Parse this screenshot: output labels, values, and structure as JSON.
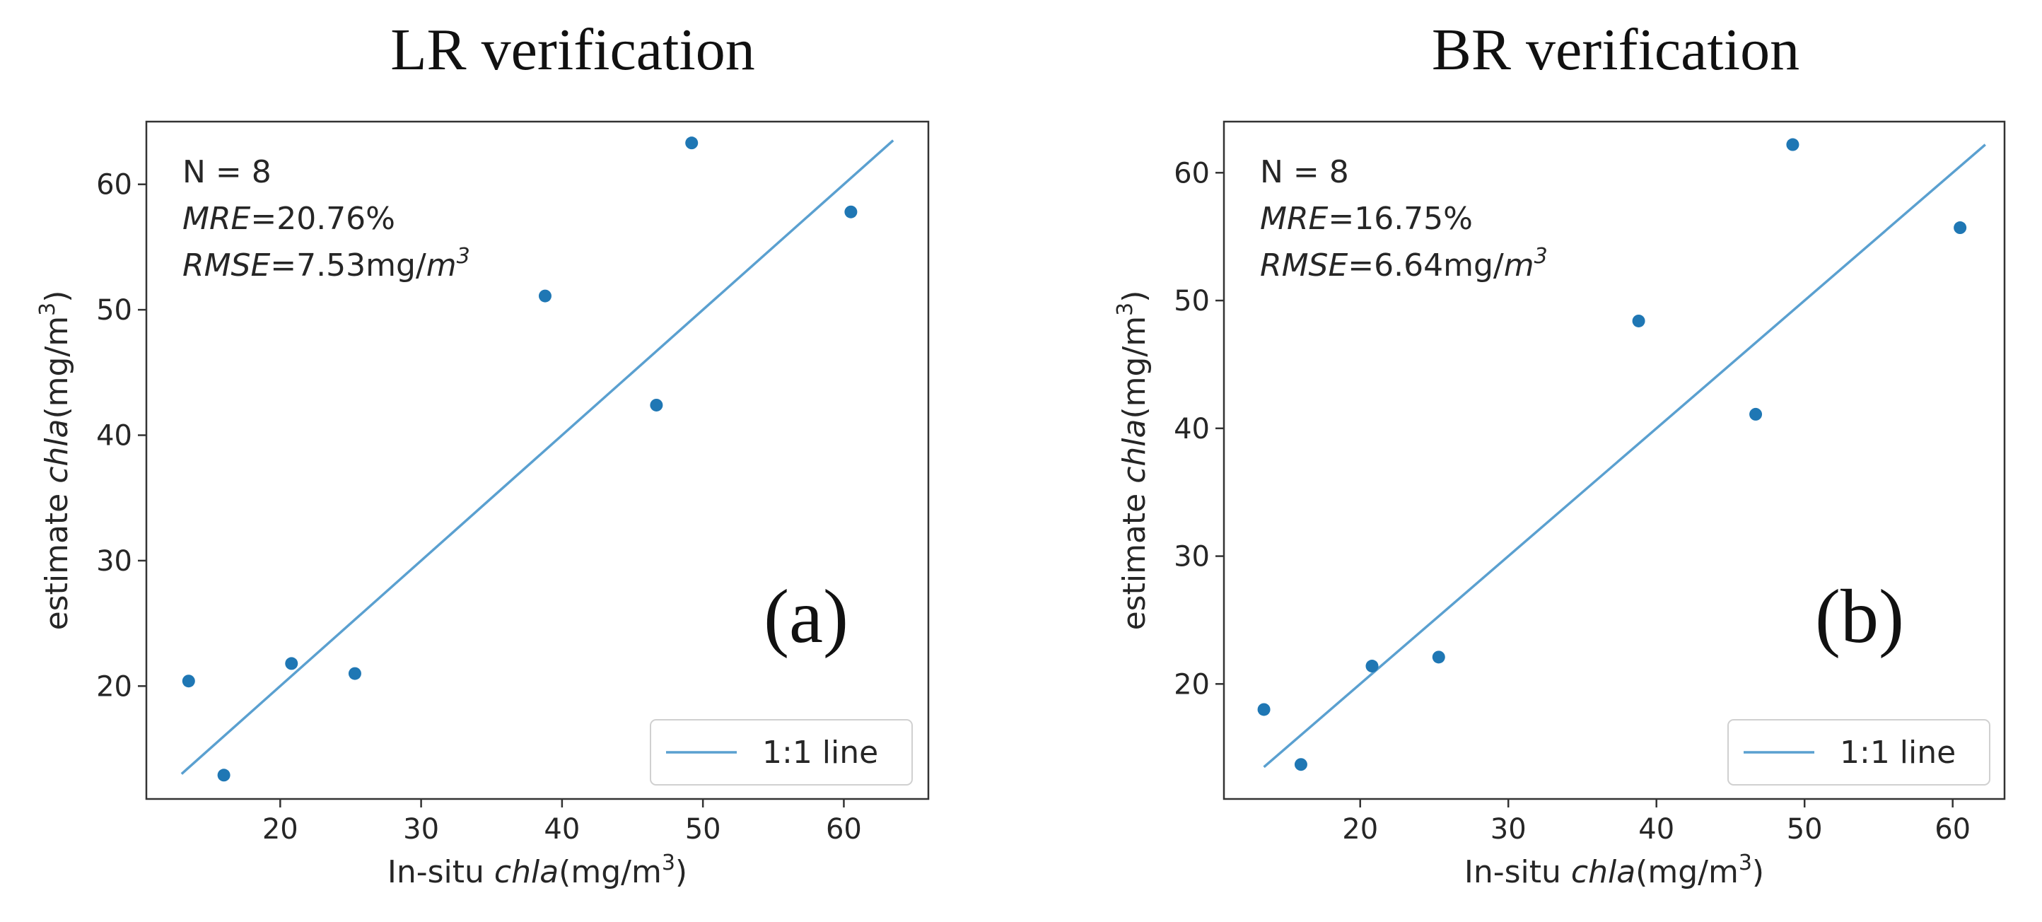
{
  "chart_data": [
    {
      "type": "scatter",
      "title": "LR verification",
      "xlabel_prefix": "In-situ ",
      "xlabel_italic": "chla",
      "xlabel_unit": "(mg/m",
      "xlabel_sup": "3",
      "xlabel_close": ")",
      "ylabel_prefix": "estimate ",
      "ylabel_italic": "chla",
      "ylabel_unit": "(mg/m",
      "ylabel_sup": "3",
      "ylabel_close": ")",
      "xlim": [
        10.5,
        66
      ],
      "ylim": [
        11,
        65
      ],
      "xticks": [
        20,
        30,
        40,
        50,
        60
      ],
      "yticks": [
        20,
        30,
        40,
        50,
        60
      ],
      "stats": {
        "n": "N = 8",
        "mre_label": "MRE",
        "mre_value": "=20.76%",
        "rmse_label": "RMSE",
        "rmse_value": "=7.53mg/",
        "rmse_unit": "m",
        "rmse_sup": "3"
      },
      "panel_label": "(a)",
      "legend": "1:1 line",
      "line": {
        "x": [
          13,
          63.5
        ],
        "y": [
          13,
          63.5
        ]
      },
      "points": [
        {
          "x": 13.5,
          "y": 20.4
        },
        {
          "x": 16.0,
          "y": 12.9
        },
        {
          "x": 20.8,
          "y": 21.8
        },
        {
          "x": 25.3,
          "y": 21.0
        },
        {
          "x": 38.8,
          "y": 51.1
        },
        {
          "x": 46.7,
          "y": 42.4
        },
        {
          "x": 49.2,
          "y": 63.3
        },
        {
          "x": 60.5,
          "y": 57.8
        }
      ],
      "point_color": "#1f77b4",
      "line_color": "#5aa0d0"
    },
    {
      "type": "scatter",
      "title": "BR verification",
      "xlabel_prefix": "In-situ ",
      "xlabel_italic": "chla",
      "xlabel_unit": "(mg/m",
      "xlabel_sup": "3",
      "xlabel_close": ")",
      "ylabel_prefix": "estimate ",
      "ylabel_italic": "chla",
      "ylabel_unit": "(mg/m",
      "ylabel_sup": "3",
      "ylabel_close": ")",
      "xlim": [
        10.8,
        63.5
      ],
      "ylim": [
        11,
        64
      ],
      "xticks": [
        20,
        30,
        40,
        50,
        60
      ],
      "yticks": [
        20,
        30,
        40,
        50,
        60
      ],
      "stats": {
        "n": "N = 8",
        "mre_label": "MRE",
        "mre_value": "=16.75%",
        "rmse_label": "RMSE",
        "rmse_value": "=6.64mg/",
        "rmse_unit": "m",
        "rmse_sup": "3"
      },
      "panel_label": "(b)",
      "legend": "1:1 line",
      "line": {
        "x": [
          13.5,
          62.2
        ],
        "y": [
          13.5,
          62.2
        ]
      },
      "points": [
        {
          "x": 13.5,
          "y": 18.0
        },
        {
          "x": 16.0,
          "y": 13.7
        },
        {
          "x": 20.8,
          "y": 21.4
        },
        {
          "x": 25.3,
          "y": 22.1
        },
        {
          "x": 38.8,
          "y": 48.4
        },
        {
          "x": 46.7,
          "y": 41.1
        },
        {
          "x": 49.2,
          "y": 62.2
        },
        {
          "x": 60.5,
          "y": 55.7
        }
      ],
      "point_color": "#1f77b4",
      "line_color": "#5aa0d0"
    }
  ]
}
